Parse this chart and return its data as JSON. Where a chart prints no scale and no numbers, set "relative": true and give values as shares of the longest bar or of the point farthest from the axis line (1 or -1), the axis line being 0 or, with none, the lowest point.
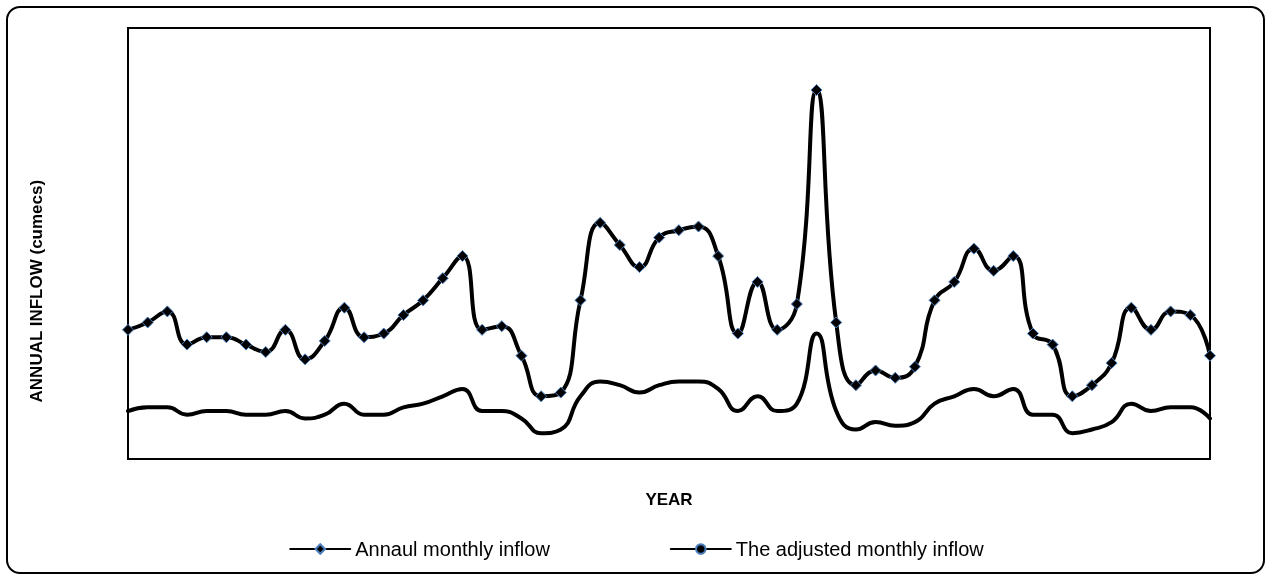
{
  "chart_data": {
    "type": "line",
    "relative": true,
    "xlabel": "YEAR",
    "ylabel": "ANNUAL INFLOW (cumecs)",
    "legend": "bottom",
    "grid": false,
    "line_style": "solid",
    "categories": [
      null,
      null,
      null,
      null,
      null,
      null,
      null,
      null,
      null,
      null,
      null,
      null,
      null,
      null,
      null,
      null,
      null,
      null,
      null,
      null,
      null,
      null,
      null,
      null,
      null,
      null,
      null,
      null,
      null,
      null,
      null,
      null,
      null,
      null,
      null,
      null,
      null,
      null,
      null,
      null,
      null,
      null,
      null,
      null,
      null,
      null,
      null,
      null,
      null,
      null,
      null,
      null,
      null,
      null,
      null,
      null
    ],
    "series": [
      {
        "name": "Annaul monthly inflow",
        "color": "#000000",
        "marker": "diamond",
        "values": [
          0.35,
          0.37,
          0.4,
          0.31,
          0.33,
          0.33,
          0.31,
          0.29,
          0.35,
          0.27,
          0.32,
          0.41,
          0.33,
          0.34,
          0.39,
          0.43,
          0.49,
          0.55,
          0.35,
          0.36,
          0.28,
          0.17,
          0.18,
          0.43,
          0.64,
          0.58,
          0.52,
          0.6,
          0.62,
          0.63,
          0.55,
          0.34,
          0.48,
          0.35,
          0.42,
          1.0,
          0.37,
          0.2,
          0.24,
          0.22,
          0.25,
          0.43,
          0.48,
          0.57,
          0.51,
          0.55,
          0.34,
          0.31,
          0.17,
          0.2,
          0.26,
          0.41,
          0.35,
          0.4,
          0.39,
          0.28
        ]
      },
      {
        "name": "The adjusted monthly inflow",
        "color": "#000000",
        "marker": "none",
        "values": [
          0.13,
          0.14,
          0.14,
          0.12,
          0.13,
          0.13,
          0.12,
          0.12,
          0.13,
          0.11,
          0.12,
          0.15,
          0.12,
          0.12,
          0.14,
          0.15,
          0.17,
          0.19,
          0.13,
          0.13,
          0.11,
          0.07,
          0.08,
          0.17,
          0.21,
          0.2,
          0.18,
          0.2,
          0.21,
          0.21,
          0.19,
          0.13,
          0.17,
          0.13,
          0.15,
          0.34,
          0.13,
          0.08,
          0.1,
          0.09,
          0.1,
          0.15,
          0.17,
          0.19,
          0.17,
          0.19,
          0.12,
          0.12,
          0.07,
          0.08,
          0.1,
          0.15,
          0.13,
          0.14,
          0.14,
          0.11
        ]
      }
    ]
  }
}
